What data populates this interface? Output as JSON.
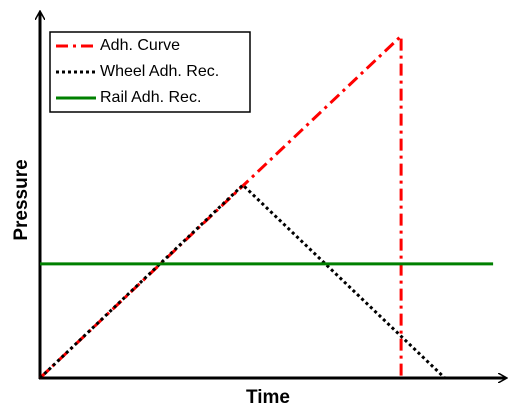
{
  "chart_data": {
    "type": "line",
    "x_label": "Time",
    "y_label": "Pressure",
    "xlim": [
      0,
      100
    ],
    "ylim": [
      0,
      100
    ],
    "series": [
      {
        "name": "Adh. Curve",
        "color": "#ff0000",
        "style": "dashdot",
        "x": [
          0,
          78.5,
          78.5
        ],
        "values": [
          0,
          95,
          0
        ]
      },
      {
        "name": "Wheel Adh. Rec.",
        "color": "#000000",
        "style": "dotted",
        "x": [
          0,
          44.1,
          88
        ],
        "values": [
          0,
          53.6,
          0
        ]
      },
      {
        "name": "Rail Adh. Rec.",
        "color": "#008000",
        "style": "solid",
        "x": [
          0,
          98.5
        ],
        "values": [
          31.7,
          31.7
        ]
      }
    ],
    "legend": "upper-left"
  }
}
